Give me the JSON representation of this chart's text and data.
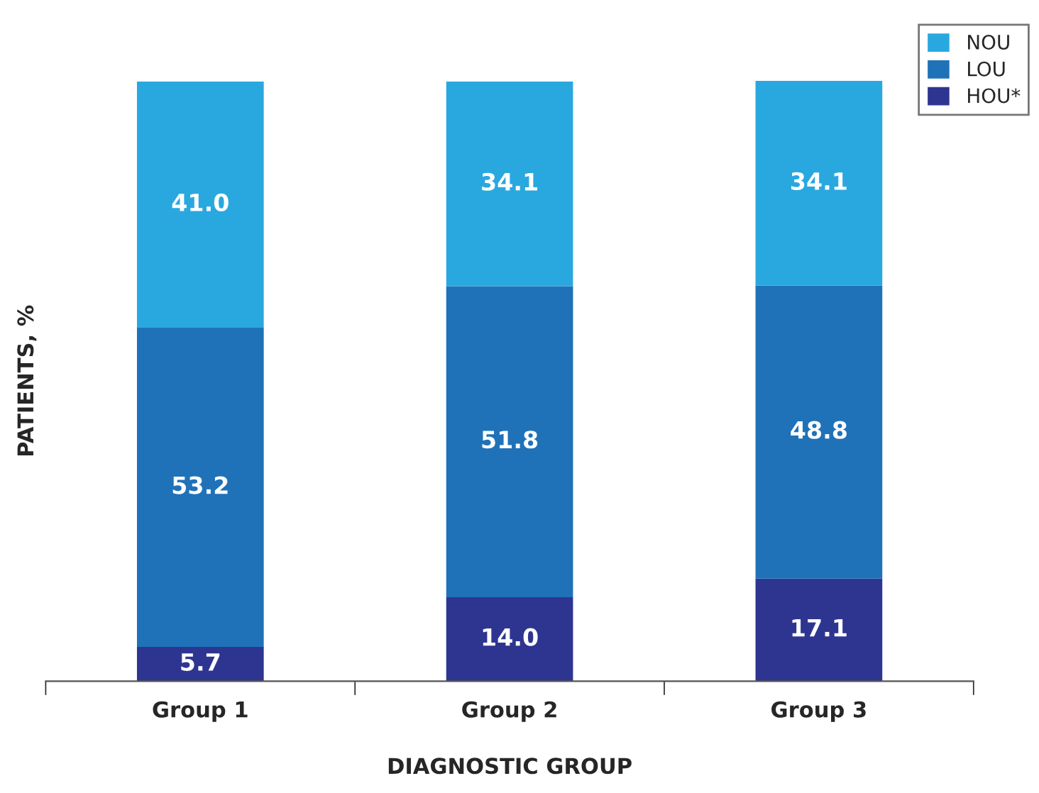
{
  "chart_data": {
    "type": "bar",
    "stacked": true,
    "xlabel": "DIAGNOSTIC GROUP",
    "ylabel": "PATIENTS, %",
    "categories": [
      "Group 1",
      "Group 2",
      "Group 3"
    ],
    "series": [
      {
        "name": "HOU*",
        "color": "#2e3590",
        "values": [
          5.7,
          14.0,
          17.1
        ],
        "value_labels": [
          "5.7",
          "14.0",
          "17.1"
        ]
      },
      {
        "name": "LOU",
        "color": "#1f72b8",
        "values": [
          53.2,
          51.8,
          48.8
        ],
        "value_labels": [
          "53.2",
          "51.8",
          "48.8"
        ]
      },
      {
        "name": "NOU",
        "color": "#29a8e0",
        "values": [
          41.0,
          34.1,
          34.1
        ],
        "value_labels": [
          "41.0",
          "34.1",
          "34.1"
        ]
      }
    ],
    "ylim": [
      0,
      100
    ],
    "tick_labels": "x",
    "legend": "top right",
    "grid": false
  }
}
